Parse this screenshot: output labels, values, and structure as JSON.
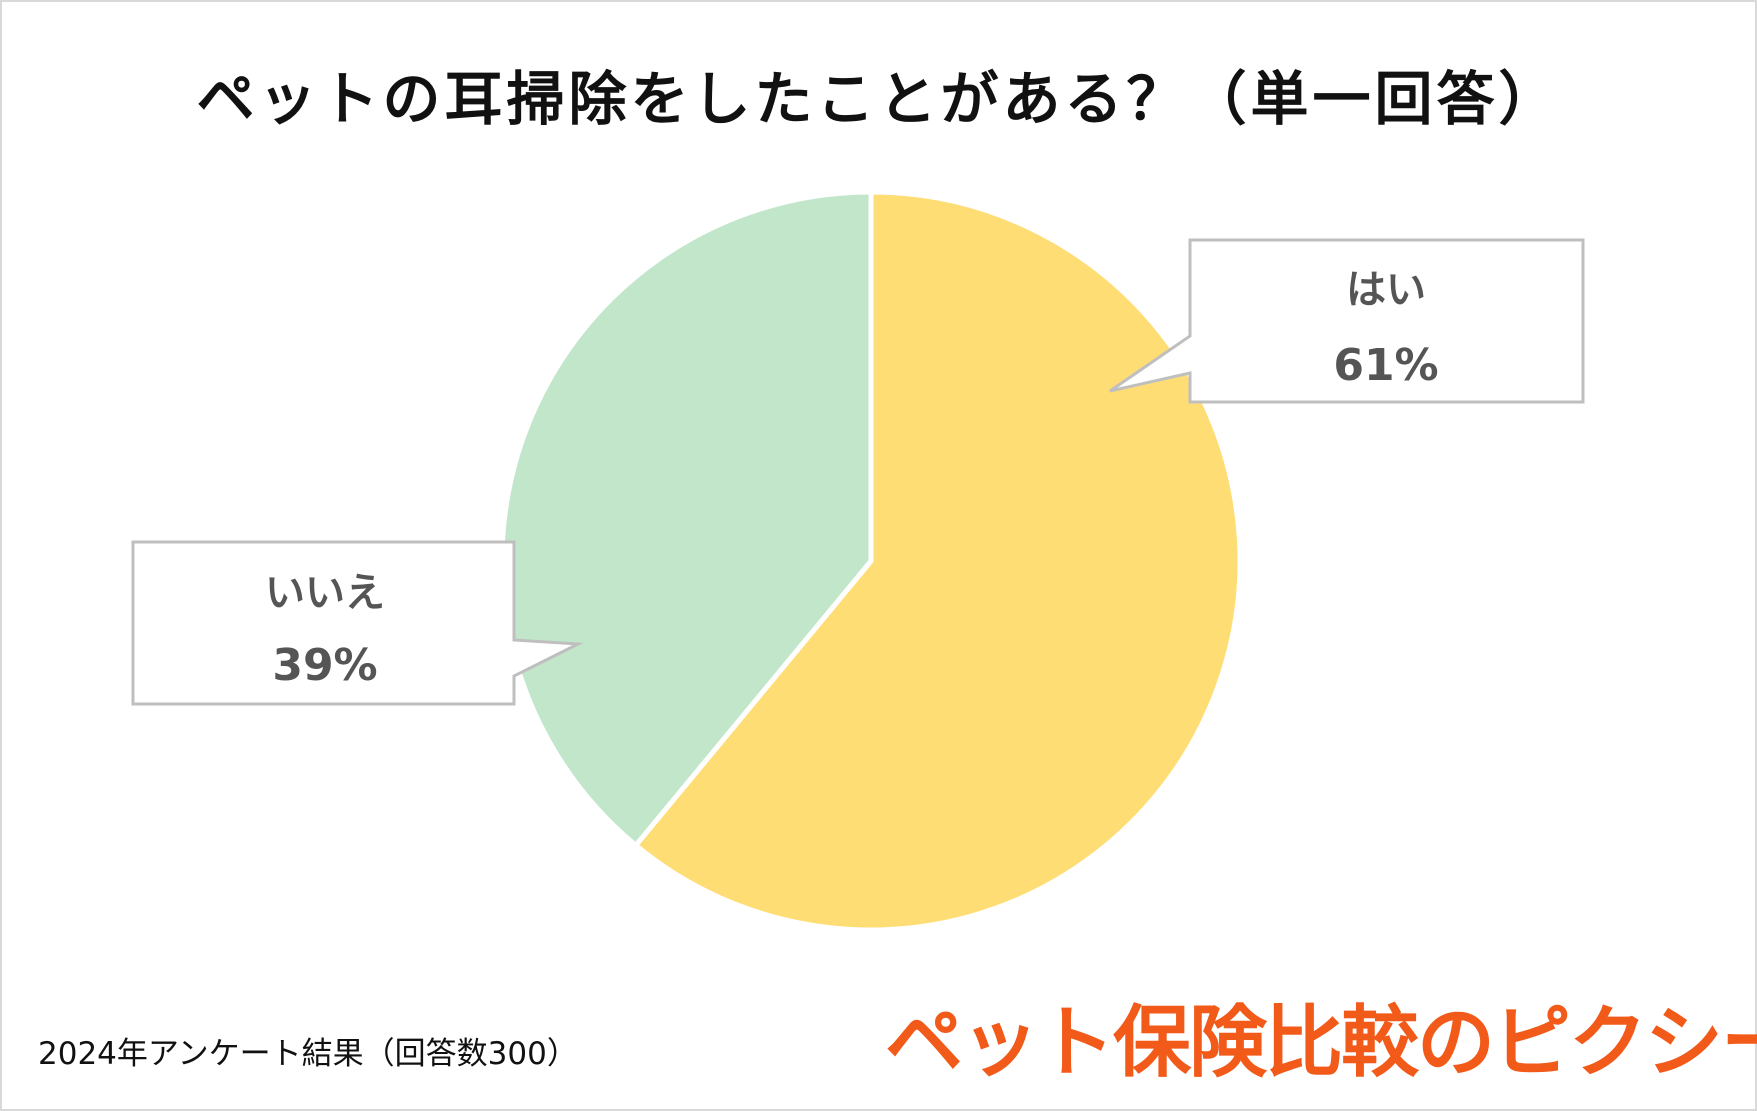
{
  "chart_data": {
    "type": "pie",
    "title": "ペットの耳掃除をしたことがある？（単一回答）",
    "slices": [
      {
        "label": "はい",
        "value": 61,
        "value_label": "61%",
        "color": "#ffdd75"
      },
      {
        "label": "いいえ",
        "value": 39,
        "value_label": "39%",
        "color": "#c1e6c9"
      }
    ],
    "start_angle_deg": 0,
    "direction": "clockwise",
    "separator_color": "#ffffff"
  },
  "footnote": "2024年アンケート結果（回答数300）",
  "brand": "ペット保険比較のピクシー",
  "colors": {
    "brand": "#f25a1a",
    "callout_border": "#bfbfbf",
    "label_text": "#555555"
  }
}
